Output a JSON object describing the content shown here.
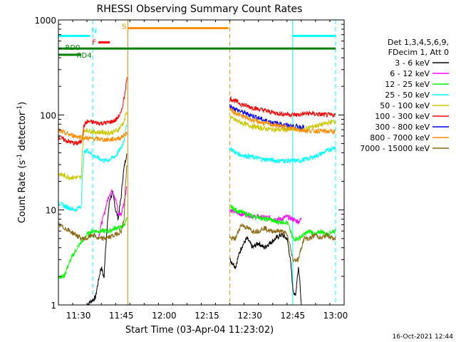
{
  "chart_data": {
    "type": "line",
    "title": "RHESSI Observing Summary Count Rates",
    "xlabel": "Start Time (03-Apr-04 11:23:02)",
    "ylabel_main": "Count Rate (s",
    "ylabel_sup1": "-1",
    "ylabel_mid": " detector",
    "ylabel_sup2": "-1",
    "ylabel_end": ")",
    "ylog": true,
    "ylim": [
      1,
      1000
    ],
    "xlim_minutes": [
      683,
      783
    ],
    "x_ticks": [
      {
        "m": 690,
        "label": "11:30"
      },
      {
        "m": 705,
        "label": "11:45"
      },
      {
        "m": 720,
        "label": "12:00"
      },
      {
        "m": 735,
        "label": "12:15"
      },
      {
        "m": 750,
        "label": "12:30"
      },
      {
        "m": 765,
        "label": "12:45"
      },
      {
        "m": 780,
        "label": "13:00"
      }
    ],
    "y_ticks": [
      {
        "v": 1,
        "label": "1"
      },
      {
        "v": 10,
        "label": "10"
      },
      {
        "v": 100,
        "label": "100"
      },
      {
        "v": 1000,
        "label": "1000"
      }
    ],
    "legend_header": [
      "Det 1,3,4,5,6,9,",
      "FDecim 1, Att 0"
    ],
    "series": [
      {
        "name": "3 - 6 keV",
        "color": "#000000",
        "seg1": [
          [
            693,
            1
          ],
          [
            696,
            1.2
          ],
          [
            697,
            1.8
          ],
          [
            698,
            2.5
          ],
          [
            699,
            1.9
          ],
          [
            700,
            6
          ],
          [
            701,
            13
          ],
          [
            702,
            15
          ],
          [
            703,
            10
          ],
          [
            704,
            8
          ],
          [
            705,
            14
          ],
          [
            706,
            28
          ],
          [
            707,
            40
          ]
        ],
        "seg2": [
          [
            743,
            3
          ],
          [
            745,
            2.5
          ],
          [
            747,
            4
          ],
          [
            749,
            5
          ],
          [
            751,
            4
          ],
          [
            753,
            4.5
          ],
          [
            755,
            4
          ],
          [
            757,
            4.5
          ],
          [
            759,
            5
          ],
          [
            761,
            5.5
          ],
          [
            763,
            5
          ],
          [
            765,
            1.5
          ],
          [
            766,
            1.2
          ],
          [
            767,
            2.5
          ],
          [
            768,
            1
          ]
        ]
      },
      {
        "name": "6 - 12 keV",
        "color": "#ff00ff",
        "seg1": [
          [
            697,
            5
          ],
          [
            698,
            7
          ],
          [
            699,
            9
          ],
          [
            700,
            12
          ],
          [
            701,
            15
          ],
          [
            702,
            16
          ],
          [
            703,
            13
          ],
          [
            704,
            9
          ],
          [
            705,
            9
          ],
          [
            706,
            12
          ],
          [
            707,
            18
          ]
        ],
        "seg2": [
          [
            743,
            10
          ],
          [
            745,
            9.5
          ],
          [
            747,
            9
          ],
          [
            749,
            9
          ],
          [
            751,
            8.5
          ],
          [
            753,
            8.5
          ],
          [
            755,
            8.3
          ],
          [
            757,
            8.3
          ],
          [
            759,
            8
          ],
          [
            761,
            8
          ],
          [
            763,
            8.5
          ],
          [
            765,
            8
          ],
          [
            767,
            7.5
          ],
          [
            768,
            8
          ]
        ]
      },
      {
        "name": "12 - 25 keV",
        "color": "#00ff00",
        "seg1": [
          [
            683,
            2
          ],
          [
            684,
            2
          ],
          [
            685,
            2
          ],
          [
            692,
            5
          ],
          [
            693,
            5.5
          ],
          [
            695,
            6
          ],
          [
            697,
            6
          ],
          [
            699,
            6
          ],
          [
            701,
            6
          ],
          [
            703,
            6.5
          ],
          [
            705,
            6.5
          ],
          [
            706,
            7
          ],
          [
            707,
            8
          ]
        ],
        "seg2": [
          [
            743,
            11
          ],
          [
            745,
            10
          ],
          [
            747,
            9.5
          ],
          [
            749,
            9
          ],
          [
            751,
            8.5
          ],
          [
            753,
            8.5
          ],
          [
            755,
            8
          ],
          [
            757,
            8
          ],
          [
            759,
            7.5
          ],
          [
            761,
            7.5
          ],
          [
            763,
            7.5
          ],
          [
            765,
            5
          ],
          [
            767,
            5
          ],
          [
            769,
            5.5
          ],
          [
            771,
            6
          ],
          [
            773,
            5.5
          ],
          [
            775,
            6
          ],
          [
            777,
            5.5
          ],
          [
            779,
            6
          ],
          [
            780,
            6
          ]
        ]
      },
      {
        "name": "25 - 50 keV",
        "color": "#00ffff",
        "seg1": [
          [
            683,
            12
          ],
          [
            685,
            11
          ],
          [
            687,
            10.5
          ],
          [
            689,
            10
          ],
          [
            691,
            11
          ],
          [
            692,
            40
          ],
          [
            693,
            43
          ],
          [
            695,
            38
          ],
          [
            697,
            35
          ],
          [
            699,
            33
          ],
          [
            701,
            34
          ],
          [
            703,
            37
          ],
          [
            705,
            45
          ],
          [
            706,
            55
          ],
          [
            707,
            80
          ]
        ],
        "seg2": [
          [
            743,
            45
          ],
          [
            745,
            40
          ],
          [
            747,
            38
          ],
          [
            749,
            37
          ],
          [
            751,
            36
          ],
          [
            753,
            35
          ],
          [
            755,
            34
          ],
          [
            757,
            34
          ],
          [
            759,
            33
          ],
          [
            761,
            33
          ],
          [
            763,
            33
          ],
          [
            765,
            33
          ],
          [
            767,
            33
          ],
          [
            769,
            34
          ],
          [
            771,
            35
          ],
          [
            773,
            37
          ],
          [
            775,
            39
          ],
          [
            777,
            42
          ],
          [
            779,
            45
          ],
          [
            780,
            46
          ]
        ]
      },
      {
        "name": "50 - 100 keV",
        "color": "#c8c800",
        "seg1": [
          [
            683,
            24
          ],
          [
            685,
            23
          ],
          [
            687,
            22
          ],
          [
            689,
            22
          ],
          [
            691,
            22
          ],
          [
            692,
            70
          ],
          [
            694,
            68
          ],
          [
            696,
            66
          ],
          [
            698,
            66
          ],
          [
            700,
            65
          ],
          [
            702,
            66
          ],
          [
            704,
            70
          ],
          [
            706,
            85
          ],
          [
            707,
            110
          ]
        ],
        "seg2": [
          [
            743,
            95
          ],
          [
            745,
            88
          ],
          [
            747,
            83
          ],
          [
            749,
            79
          ],
          [
            751,
            76
          ],
          [
            753,
            74
          ],
          [
            755,
            72
          ],
          [
            757,
            71
          ],
          [
            759,
            70
          ],
          [
            761,
            70
          ],
          [
            763,
            70
          ],
          [
            765,
            70
          ],
          [
            767,
            70
          ],
          [
            769,
            71
          ],
          [
            771,
            74
          ],
          [
            773,
            77
          ],
          [
            775,
            79
          ],
          [
            777,
            82
          ],
          [
            779,
            85
          ],
          [
            780,
            86
          ]
        ]
      },
      {
        "name": "100 - 300 keV",
        "color": "#ff0000",
        "seg1": [
          [
            683,
            58
          ],
          [
            685,
            55
          ],
          [
            687,
            52
          ],
          [
            689,
            50
          ],
          [
            691,
            52
          ],
          [
            692,
            78
          ],
          [
            693,
            85
          ],
          [
            695,
            84
          ],
          [
            697,
            82
          ],
          [
            699,
            82
          ],
          [
            701,
            84
          ],
          [
            703,
            88
          ],
          [
            705,
            105
          ],
          [
            706,
            150
          ],
          [
            707,
            240
          ]
        ],
        "seg2": [
          [
            743,
            150
          ],
          [
            745,
            140
          ],
          [
            747,
            130
          ],
          [
            749,
            124
          ],
          [
            751,
            120
          ],
          [
            753,
            115
          ],
          [
            755,
            112
          ],
          [
            757,
            108
          ],
          [
            759,
            105
          ],
          [
            761,
            103
          ],
          [
            763,
            102
          ],
          [
            765,
            101
          ],
          [
            767,
            100
          ],
          [
            769,
            103
          ],
          [
            771,
            104
          ],
          [
            773,
            102
          ],
          [
            775,
            101
          ],
          [
            777,
            100
          ],
          [
            779,
            100
          ],
          [
            780,
            100
          ]
        ]
      },
      {
        "name": "300 - 800 keV",
        "color": "#0000ff",
        "seg1": [],
        "seg2": [
          [
            743,
            125
          ],
          [
            745,
            115
          ],
          [
            747,
            108
          ],
          [
            749,
            103
          ],
          [
            751,
            98
          ],
          [
            753,
            93
          ],
          [
            755,
            88
          ],
          [
            757,
            85
          ],
          [
            759,
            82
          ],
          [
            761,
            80
          ],
          [
            763,
            78
          ],
          [
            765,
            76
          ],
          [
            767,
            75
          ],
          [
            769,
            75
          ]
        ]
      },
      {
        "name": "800 - 7000 keV",
        "color": "#ff8c00",
        "seg1": [
          [
            683,
            68
          ],
          [
            685,
            65
          ],
          [
            687,
            62
          ],
          [
            689,
            60
          ],
          [
            691,
            58
          ],
          [
            693,
            57
          ],
          [
            695,
            56
          ],
          [
            697,
            56
          ],
          [
            699,
            55
          ],
          [
            701,
            55
          ],
          [
            703,
            56
          ],
          [
            705,
            58
          ],
          [
            707,
            65
          ]
        ],
        "seg2": [
          [
            743,
            115
          ],
          [
            745,
            105
          ],
          [
            747,
            98
          ],
          [
            749,
            93
          ],
          [
            751,
            88
          ],
          [
            753,
            85
          ],
          [
            755,
            82
          ],
          [
            757,
            80
          ],
          [
            759,
            78
          ],
          [
            761,
            76
          ],
          [
            763,
            74
          ],
          [
            765,
            72
          ],
          [
            767,
            70
          ],
          [
            769,
            69
          ],
          [
            771,
            68
          ],
          [
            773,
            68
          ],
          [
            775,
            68
          ],
          [
            777,
            67
          ],
          [
            779,
            67
          ],
          [
            780,
            67
          ]
        ]
      },
      {
        "name": "7000 - 15000 keV",
        "color": "#8b6914",
        "seg1": [
          [
            683,
            7
          ],
          [
            685,
            6.5
          ],
          [
            687,
            6
          ],
          [
            689,
            5.5
          ],
          [
            691,
            5
          ],
          [
            693,
            5
          ],
          [
            695,
            5.5
          ],
          [
            697,
            5
          ],
          [
            699,
            5
          ],
          [
            701,
            5.2
          ],
          [
            703,
            5.5
          ],
          [
            705,
            6
          ],
          [
            706,
            8
          ],
          [
            707,
            30
          ]
        ],
        "seg2": [
          [
            743,
            5
          ],
          [
            745,
            5
          ],
          [
            747,
            7
          ],
          [
            749,
            6.5
          ],
          [
            751,
            6
          ],
          [
            753,
            6
          ],
          [
            755,
            6.5
          ],
          [
            757,
            6
          ],
          [
            759,
            6
          ],
          [
            761,
            6
          ],
          [
            763,
            5.5
          ],
          [
            765,
            3
          ],
          [
            767,
            3
          ],
          [
            769,
            5
          ],
          [
            771,
            5
          ],
          [
            773,
            5.5
          ],
          [
            775,
            5
          ],
          [
            777,
            5.5
          ],
          [
            779,
            5
          ],
          [
            780,
            5
          ]
        ]
      }
    ],
    "vlines": [
      {
        "m": 683,
        "color": "#00ffff",
        "style": "solid"
      },
      {
        "m": 695,
        "color": "#00ffff",
        "style": "dashed"
      },
      {
        "m": 707.3,
        "color": "#ff8c00",
        "style": "solid"
      },
      {
        "m": 743,
        "color": "#ff8c00",
        "style": "dashed"
      },
      {
        "m": 765,
        "color": "#00ffff",
        "style": "solid"
      },
      {
        "m": 780,
        "color": "#00ffff",
        "style": "dashed"
      }
    ],
    "flags": [
      {
        "label": "N",
        "color": "#00ffff",
        "start": 683,
        "end": 694,
        "y": 680,
        "label_at": 695.5,
        "label_y": 780
      },
      {
        "label": "S",
        "color": "#ff8c00",
        "start": 707.3,
        "end": 742.5,
        "y": 820,
        "label_at": 706,
        "label_y": 860
      },
      {
        "label": "",
        "color": "#00ffff",
        "start": 765,
        "end": 780,
        "y": 680,
        "label_at": 765,
        "label_y": 680
      },
      {
        "label": "F",
        "color": "#ff0000",
        "start": 697,
        "end": 701,
        "y": 580,
        "label_at": 695.5,
        "label_y": 590
      },
      {
        "label": "RD0",
        "color": "#008000",
        "start": 683,
        "end": 780,
        "y": 500,
        "label_at": 688,
        "label_y": 520
      },
      {
        "label": "RD4",
        "color": "#008000",
        "start": 683,
        "end": 691,
        "y": 430,
        "label_at": 692,
        "label_y": 430
      }
    ]
  },
  "footer_timestamp": "16-Oct-2021 12:44"
}
